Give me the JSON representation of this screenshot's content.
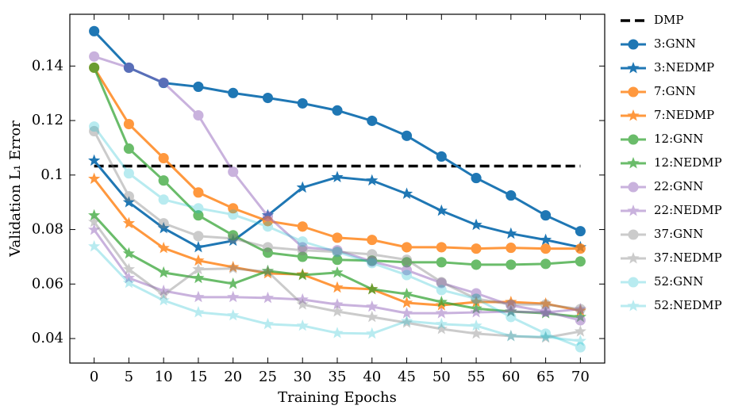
{
  "chart_data": {
    "type": "line",
    "x_label": "Training Epochs",
    "y_label": "Validation L₁ Error",
    "x": [
      0,
      5,
      10,
      15,
      20,
      25,
      30,
      35,
      40,
      45,
      50,
      55,
      60,
      65,
      70
    ],
    "xlim": [
      -3.5,
      73.5
    ],
    "ylim": [
      0.031,
      0.159
    ],
    "xticks": [
      0,
      5,
      10,
      15,
      20,
      25,
      30,
      35,
      40,
      45,
      50,
      55,
      60,
      65,
      70
    ],
    "yticks": [
      0.04,
      0.06,
      0.08,
      0.1,
      0.12,
      0.14
    ],
    "ticks_direction": "in",
    "legend_position": "outside-right",
    "reference_line": {
      "name": "DMP",
      "value": 0.1033,
      "color": "#000000",
      "linestyle": "dashed"
    },
    "series": [
      {
        "name": "3:GNN",
        "color": "#1f77b4",
        "opacity": 1,
        "marker": "circle",
        "values": [
          0.1528,
          0.1394,
          0.1338,
          0.1324,
          0.1301,
          0.1283,
          0.1263,
          0.1237,
          0.1199,
          0.1144,
          0.1068,
          0.0989,
          0.0925,
          0.0852,
          0.0794
        ]
      },
      {
        "name": "3:NEDMP",
        "color": "#1f77b4",
        "opacity": 1,
        "marker": "star",
        "values": [
          0.1053,
          0.09,
          0.0805,
          0.0735,
          0.0759,
          0.0852,
          0.0954,
          0.0992,
          0.098,
          0.0931,
          0.0869,
          0.0817,
          0.0785,
          0.0762,
          0.0735
        ]
      },
      {
        "name": "7:GNN",
        "color": "#ff7f0e",
        "opacity": 0.8,
        "marker": "circle",
        "values": [
          0.1394,
          0.1187,
          0.1062,
          0.0936,
          0.0878,
          0.0831,
          0.0811,
          0.077,
          0.0762,
          0.0735,
          0.0735,
          0.073,
          0.0733,
          0.073,
          0.073
        ]
      },
      {
        "name": "7:NEDMP",
        "color": "#ff7f0e",
        "opacity": 0.8,
        "marker": "star",
        "values": [
          0.0986,
          0.0823,
          0.0732,
          0.0686,
          0.0662,
          0.0639,
          0.0635,
          0.0587,
          0.0581,
          0.0531,
          0.0522,
          0.0534,
          0.0534,
          0.0528,
          0.0502
        ]
      },
      {
        "name": "12:GNN",
        "color": "#2ca02c",
        "opacity": 0.7,
        "marker": "circle",
        "values": [
          0.1394,
          0.1097,
          0.098,
          0.0852,
          0.0779,
          0.0715,
          0.07,
          0.0689,
          0.0686,
          0.068,
          0.068,
          0.0671,
          0.0671,
          0.0674,
          0.0683
        ]
      },
      {
        "name": "12:NEDMP",
        "color": "#2ca02c",
        "opacity": 0.7,
        "marker": "star",
        "values": [
          0.0852,
          0.0712,
          0.0642,
          0.0622,
          0.0601,
          0.0648,
          0.0633,
          0.0642,
          0.0581,
          0.0563,
          0.0534,
          0.051,
          0.0499,
          0.0493,
          0.0479
        ]
      },
      {
        "name": "22:GNN",
        "color": "#9467bd",
        "opacity": 0.5,
        "marker": "circle",
        "values": [
          0.1435,
          0.1394,
          0.1339,
          0.1219,
          0.1012,
          0.0849,
          0.0735,
          0.0724,
          0.0683,
          0.0651,
          0.0604,
          0.0566,
          0.0522,
          0.0499,
          0.0467
        ]
      },
      {
        "name": "22:NEDMP",
        "color": "#9467bd",
        "opacity": 0.5,
        "marker": "star",
        "values": [
          0.0799,
          0.0622,
          0.0575,
          0.0552,
          0.0552,
          0.0549,
          0.0543,
          0.0525,
          0.0517,
          0.0493,
          0.0493,
          0.0496,
          0.0499,
          0.0496,
          0.0508
        ]
      },
      {
        "name": "37:GNN",
        "color": "#7f7f7f",
        "opacity": 0.4,
        "marker": "circle",
        "values": [
          0.1161,
          0.0922,
          0.0823,
          0.0776,
          0.0767,
          0.0735,
          0.0724,
          0.0718,
          0.0709,
          0.0689,
          0.0607,
          0.0546,
          0.0525,
          0.0525,
          0.0508
        ]
      },
      {
        "name": "37:NEDMP",
        "color": "#7f7f7f",
        "opacity": 0.4,
        "marker": "star",
        "values": [
          0.0828,
          0.0654,
          0.056,
          0.0654,
          0.0657,
          0.0645,
          0.0525,
          0.0499,
          0.0479,
          0.0458,
          0.0435,
          0.0418,
          0.0409,
          0.0403,
          0.0426
        ]
      },
      {
        "name": "52:GNN",
        "color": "#17becf",
        "opacity": 0.3,
        "marker": "circle",
        "values": [
          0.1178,
          0.1006,
          0.091,
          0.0878,
          0.0855,
          0.0811,
          0.0756,
          0.0718,
          0.0677,
          0.0633,
          0.0578,
          0.0546,
          0.0479,
          0.0418,
          0.0368
        ]
      },
      {
        "name": "52:NEDMP",
        "color": "#17becf",
        "opacity": 0.3,
        "marker": "star",
        "values": [
          0.0738,
          0.0604,
          0.054,
          0.0496,
          0.0485,
          0.0453,
          0.0447,
          0.042,
          0.0418,
          0.0464,
          0.0453,
          0.0447,
          0.0409,
          0.0406,
          0.0391
        ]
      }
    ]
  }
}
